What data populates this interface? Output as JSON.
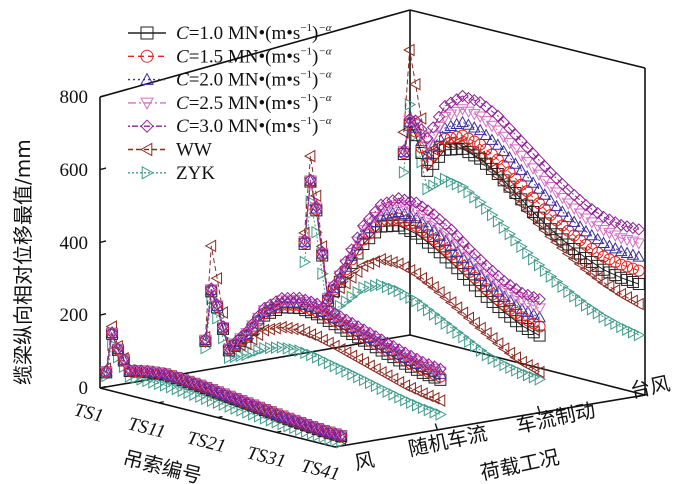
{
  "chart_data": {
    "type": "line",
    "projection": "3d",
    "ylabel": "缆梁纵向相对位移最值/mm",
    "xlabel": "吊索编号",
    "zlabel": "荷载工况",
    "ylim": [
      0,
      800
    ],
    "yticks": [
      "0",
      "200",
      "400",
      "600",
      "800"
    ],
    "xticks": [
      "TS1",
      "TS11",
      "TS21",
      "TS31",
      "TS41"
    ],
    "zticks": [
      "风",
      "随机车流",
      "车流制动",
      "台风"
    ],
    "x": [
      1,
      2,
      3,
      5,
      8,
      11,
      14,
      17,
      20,
      23,
      26,
      29,
      32,
      35,
      38,
      41
    ],
    "legend": [
      {
        "prefix": "C",
        "text": "=1.0 MN•(m•s",
        "sup1": "−1",
        "close": ")",
        "sup2": "−α",
        "color": "#222222",
        "marker": "square",
        "dash": ""
      },
      {
        "prefix": "C",
        "text": "=1.5 MN•(m•s",
        "sup1": "−1",
        "close": ")",
        "sup2": "−α",
        "color": "#e8231f",
        "marker": "circle",
        "dash": "6,4"
      },
      {
        "prefix": "C",
        "text": "=2.0 MN•(m•s",
        "sup1": "−1",
        "close": ")",
        "sup2": "−α",
        "color": "#3b2f9a",
        "marker": "triangle-up",
        "dash": "2,3"
      },
      {
        "prefix": "C",
        "text": "=2.5 MN•(m•s",
        "sup1": "−1",
        "close": ")",
        "sup2": "−α",
        "color": "#d56fbf",
        "marker": "triangle-down",
        "dash": "8,3,2,3"
      },
      {
        "prefix": "C",
        "text": "=3.0 MN•(m•s",
        "sup1": "−1",
        "close": ")",
        "sup2": "−α",
        "color": "#8e1f96",
        "marker": "diamond",
        "dash": "2,2,6,2"
      },
      {
        "prefix": "",
        "text": "WW",
        "sup1": "",
        "close": "",
        "sup2": "",
        "color": "#8a2a20",
        "marker": "triangle-left",
        "dash": "5,3"
      },
      {
        "prefix": "",
        "text": "ZYK",
        "sup1": "",
        "close": "",
        "sup2": "",
        "color": "#3f9a8a",
        "marker": "triangle-right",
        "dash": "2,2"
      }
    ],
    "rows": [
      {
        "case": "风",
        "series": [
          [
            40,
            150,
            110,
            60,
            70,
            75,
            72,
            68,
            62,
            56,
            50,
            44,
            38,
            33,
            29,
            27
          ],
          [
            41,
            151,
            111,
            61,
            71,
            76,
            73,
            69,
            63,
            57,
            51,
            45,
            39,
            34,
            30,
            28
          ],
          [
            42,
            152,
            112,
            61,
            71,
            76,
            73,
            69,
            63,
            57,
            51,
            45,
            39,
            34,
            30,
            28
          ],
          [
            42,
            152,
            112,
            62,
            72,
            77,
            74,
            70,
            64,
            58,
            52,
            46,
            40,
            35,
            31,
            29
          ],
          [
            43,
            153,
            113,
            62,
            72,
            77,
            74,
            70,
            64,
            58,
            52,
            46,
            40,
            35,
            31,
            29
          ],
          [
            50,
            170,
            120,
            62,
            68,
            70,
            66,
            60,
            54,
            48,
            42,
            36,
            30,
            26,
            22,
            20
          ],
          [
            30,
            120,
            90,
            45,
            45,
            45,
            42,
            38,
            34,
            30,
            26,
            22,
            18,
            15,
            12,
            10
          ]
        ]
      },
      {
        "case": "随机车流",
        "series": [
          [
            80,
            220,
            180,
            70,
            120,
            190,
            225,
            235,
            230,
            215,
            200,
            185,
            170,
            155,
            142,
            135
          ],
          [
            81,
            222,
            182,
            72,
            124,
            196,
            232,
            243,
            238,
            224,
            209,
            194,
            179,
            164,
            151,
            144
          ],
          [
            82,
            224,
            184,
            73,
            127,
            200,
            238,
            250,
            245,
            231,
            216,
            201,
            186,
            171,
            158,
            151
          ],
          [
            83,
            226,
            186,
            75,
            130,
            205,
            244,
            257,
            252,
            238,
            223,
            208,
            193,
            178,
            165,
            158
          ],
          [
            84,
            228,
            188,
            76,
            133,
            210,
            250,
            263,
            259,
            245,
            230,
            215,
            200,
            185,
            172,
            165
          ],
          [
            90,
            345,
            260,
            80,
            100,
            150,
            170,
            175,
            168,
            155,
            140,
            125,
            110,
            95,
            85,
            78
          ],
          [
            60,
            200,
            150,
            50,
            70,
            100,
            115,
            118,
            112,
            100,
            90,
            78,
            66,
            55,
            46,
            40
          ]
        ]
      },
      {
        "case": "车流制动",
        "series": [
          [
            300,
            475,
            400,
            160,
            250,
            340,
            400,
            415,
            405,
            380,
            350,
            315,
            280,
            250,
            225,
            210
          ],
          [
            303,
            476,
            402,
            163,
            258,
            352,
            415,
            434,
            426,
            402,
            372,
            336,
            301,
            271,
            248,
            235
          ],
          [
            305,
            477,
            405,
            165,
            265,
            365,
            430,
            452,
            447,
            425,
            395,
            357,
            322,
            292,
            270,
            260
          ],
          [
            308,
            478,
            408,
            168,
            272,
            378,
            445,
            471,
            468,
            447,
            417,
            379,
            344,
            314,
            293,
            285
          ],
          [
            310,
            480,
            410,
            170,
            280,
            390,
            460,
            490,
            490,
            470,
            440,
            400,
            365,
            335,
            315,
            310
          ],
          [
            330,
            545,
            440,
            170,
            220,
            280,
            310,
            310,
            295,
            270,
            240,
            210,
            180,
            150,
            125,
            110
          ],
          [
            250,
            420,
            340,
            120,
            170,
            220,
            240,
            235,
            220,
            195,
            170,
            145,
            120,
            105,
            95,
            90
          ]
        ]
      },
      {
        "case": "台风",
        "series": [
          [
            500,
            585,
            560,
            470,
            540,
            555,
            540,
            510,
            470,
            430,
            395,
            365,
            340,
            320,
            310,
            305
          ],
          [
            503,
            589,
            570,
            492,
            570,
            591,
            579,
            550,
            510,
            470,
            434,
            403,
            376,
            356,
            346,
            342
          ],
          [
            505,
            593,
            580,
            515,
            600,
            628,
            618,
            590,
            550,
            510,
            473,
            440,
            413,
            393,
            383,
            380
          ],
          [
            508,
            596,
            590,
            538,
            630,
            664,
            656,
            630,
            590,
            550,
            511,
            478,
            449,
            429,
            419,
            417
          ],
          [
            510,
            600,
            600,
            560,
            660,
            700,
            695,
            670,
            630,
            590,
            550,
            515,
            485,
            465,
            455,
            455
          ],
          [
            560,
            790,
            700,
            520,
            560,
            570,
            545,
            505,
            460,
            415,
            375,
            340,
            310,
            285,
            265,
            250
          ],
          [
            450,
            640,
            560,
            420,
            460,
            450,
            420,
            380,
            340,
            300,
            265,
            235,
            210,
            190,
            175,
            165
          ]
        ]
      }
    ]
  }
}
